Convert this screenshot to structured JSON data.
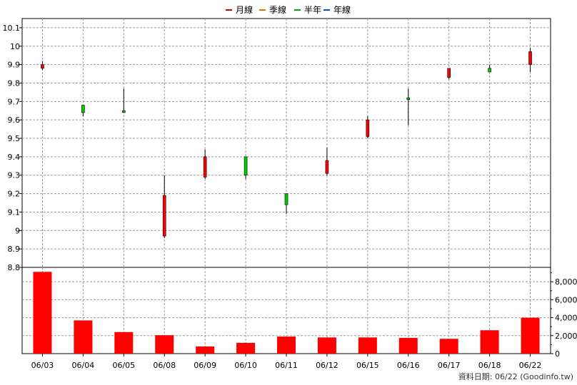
{
  "chart_data": {
    "type": "candlestick",
    "legend": {
      "placement": "top-center",
      "items": [
        {
          "label": "月線",
          "color": "#cc0000"
        },
        {
          "label": "季線",
          "color": "#e07000"
        },
        {
          "label": "半年",
          "color": "#00aa00"
        },
        {
          "label": "年線",
          "color": "#0055cc"
        }
      ]
    },
    "categories": [
      "06/03",
      "06/04",
      "06/05",
      "06/08",
      "06/09",
      "06/10",
      "06/11",
      "06/12",
      "06/15",
      "06/16",
      "06/17",
      "06/18",
      "06/22"
    ],
    "price": {
      "ylim": [
        8.8,
        10.15
      ],
      "yticks": [
        8.8,
        8.9,
        9,
        9.1,
        9.2,
        9.3,
        9.4,
        9.5,
        9.6,
        9.7,
        9.8,
        9.9,
        10,
        10.1
      ],
      "ytick_labels": [
        "8.8",
        "8.9",
        "9",
        "9.1",
        "9.2",
        "9.3",
        "9.4",
        "9.5",
        "9.6",
        "9.7",
        "9.8",
        "9.9",
        "10",
        "10.1"
      ],
      "candles": [
        {
          "open": 9.88,
          "close": 9.9,
          "high": 9.92,
          "low": 9.87
        },
        {
          "open": 9.68,
          "close": 9.64,
          "high": 9.68,
          "low": 9.62
        },
        {
          "open": 9.65,
          "close": 9.64,
          "high": 9.77,
          "low": 9.64
        },
        {
          "open": 8.97,
          "close": 9.19,
          "high": 9.3,
          "low": 8.96
        },
        {
          "open": 9.29,
          "close": 9.4,
          "high": 9.44,
          "low": 9.28
        },
        {
          "open": 9.4,
          "close": 9.3,
          "high": 9.4,
          "low": 9.28
        },
        {
          "open": 9.2,
          "close": 9.14,
          "high": 9.2,
          "low": 9.09
        },
        {
          "open": 9.31,
          "close": 9.38,
          "high": 9.45,
          "low": 9.3
        },
        {
          "open": 9.51,
          "close": 9.6,
          "high": 9.62,
          "low": 9.5
        },
        {
          "open": 9.72,
          "close": 9.71,
          "high": 9.77,
          "low": 9.57
        },
        {
          "open": 9.83,
          "close": 9.88,
          "high": 9.88,
          "low": 9.82
        },
        {
          "open": 9.88,
          "close": 9.86,
          "high": 9.9,
          "low": 9.86
        },
        {
          "open": 9.9,
          "close": 9.97,
          "high": 9.99,
          "low": 9.86
        }
      ]
    },
    "volume": {
      "ylim": [
        0,
        9600
      ],
      "yticks": [
        0,
        2000,
        4000,
        6000,
        8000
      ],
      "ytick_labels": [
        "0",
        "2,000",
        "4,000",
        "6,000",
        "8,000"
      ],
      "values": [
        9100,
        3700,
        2400,
        2050,
        800,
        1200,
        1900,
        1800,
        1800,
        1750,
        1650,
        2600,
        4000
      ],
      "color": "#ff0000"
    },
    "grid": true
  },
  "footer": {
    "text": "資料日期: 06/22  (Goodinfo.tw)"
  }
}
